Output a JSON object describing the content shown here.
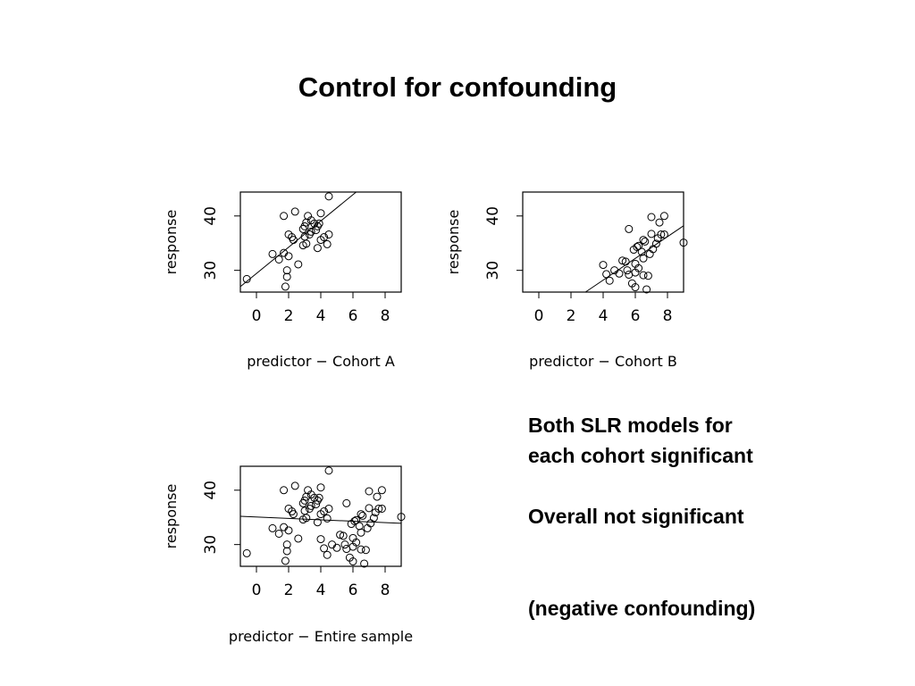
{
  "slide": {
    "title": "Control for confounding",
    "notes": {
      "line1": "Both SLR models for",
      "line2": "each cohort significant",
      "line3": "Overall not significant",
      "line4": "(negative confounding)"
    }
  },
  "chart_data": [
    {
      "type": "scatter",
      "title": "",
      "xlabel": "predictor − Cohort A",
      "ylabel": "response",
      "xlim": [
        -1,
        9
      ],
      "ylim": [
        26,
        44.4
      ],
      "xticks": [
        0,
        2,
        4,
        6,
        8
      ],
      "yticks": [
        30,
        40
      ],
      "marker": "open-circle",
      "points": [
        [
          -0.6,
          28.4
        ],
        [
          1.0,
          33.0
        ],
        [
          1.4,
          32.0
        ],
        [
          1.7,
          33.2
        ],
        [
          1.7,
          40.0
        ],
        [
          1.8,
          27.0
        ],
        [
          1.9,
          28.8
        ],
        [
          1.9,
          30.0
        ],
        [
          2.0,
          32.6
        ],
        [
          2.0,
          36.6
        ],
        [
          2.2,
          36.1
        ],
        [
          2.3,
          35.6
        ],
        [
          2.4,
          40.8
        ],
        [
          2.6,
          31.1
        ],
        [
          2.9,
          34.6
        ],
        [
          2.9,
          37.6
        ],
        [
          3.0,
          36.2
        ],
        [
          3.0,
          38.1
        ],
        [
          3.1,
          34.9
        ],
        [
          3.1,
          38.8
        ],
        [
          3.2,
          40.0
        ],
        [
          3.3,
          36.6
        ],
        [
          3.4,
          39.2
        ],
        [
          3.4,
          37.1
        ],
        [
          3.6,
          38.6
        ],
        [
          3.7,
          37.4
        ],
        [
          3.8,
          38.1
        ],
        [
          3.8,
          34.1
        ],
        [
          3.9,
          38.6
        ],
        [
          4.0,
          35.6
        ],
        [
          4.0,
          40.5
        ],
        [
          4.2,
          36.1
        ],
        [
          4.4,
          34.8
        ],
        [
          4.5,
          36.6
        ],
        [
          4.5,
          43.6
        ]
      ],
      "regression": [
        [
          -1,
          27.0
        ],
        [
          6.2,
          44.4
        ]
      ]
    },
    {
      "type": "scatter",
      "title": "",
      "xlabel": "predictor − Cohort B",
      "ylabel": "response",
      "xlim": [
        -1,
        9
      ],
      "ylim": [
        26,
        44.4
      ],
      "xticks": [
        0,
        2,
        4,
        6,
        8
      ],
      "yticks": [
        30,
        40
      ],
      "marker": "open-circle",
      "points": [
        [
          4.0,
          31.0
        ],
        [
          4.2,
          29.3
        ],
        [
          4.4,
          28.1
        ],
        [
          4.7,
          30.0
        ],
        [
          5.0,
          29.4
        ],
        [
          5.2,
          31.8
        ],
        [
          5.4,
          31.6
        ],
        [
          5.5,
          30.0
        ],
        [
          5.6,
          29.2
        ],
        [
          5.6,
          37.6
        ],
        [
          5.8,
          27.6
        ],
        [
          5.9,
          33.8
        ],
        [
          6.0,
          26.9
        ],
        [
          6.0,
          29.6
        ],
        [
          6.0,
          31.2
        ],
        [
          6.1,
          34.3
        ],
        [
          6.2,
          34.5
        ],
        [
          6.2,
          30.4
        ],
        [
          6.4,
          33.4
        ],
        [
          6.5,
          35.6
        ],
        [
          6.5,
          32.2
        ],
        [
          6.5,
          29.1
        ],
        [
          6.6,
          35.3
        ],
        [
          6.7,
          26.5
        ],
        [
          6.8,
          29.0
        ],
        [
          6.9,
          33.0
        ],
        [
          7.0,
          39.8
        ],
        [
          7.0,
          36.7
        ],
        [
          7.1,
          33.9
        ],
        [
          7.3,
          34.9
        ],
        [
          7.4,
          35.9
        ],
        [
          7.5,
          38.8
        ],
        [
          7.6,
          36.6
        ],
        [
          7.8,
          40.0
        ],
        [
          7.8,
          36.6
        ],
        [
          9.0,
          35.1
        ]
      ],
      "regression": [
        [
          2.9,
          26.0
        ],
        [
          9.0,
          38.2
        ]
      ]
    },
    {
      "type": "scatter",
      "title": "",
      "xlabel": "predictor − Entire sample",
      "ylabel": "response",
      "xlim": [
        -1,
        9
      ],
      "ylim": [
        26,
        44.4
      ],
      "xticks": [
        0,
        2,
        4,
        6,
        8
      ],
      "yticks": [
        30,
        40
      ],
      "marker": "open-circle",
      "points": [
        [
          -0.6,
          28.4
        ],
        [
          1.0,
          33.0
        ],
        [
          1.4,
          32.0
        ],
        [
          1.7,
          33.2
        ],
        [
          1.7,
          40.0
        ],
        [
          1.8,
          27.0
        ],
        [
          1.9,
          28.8
        ],
        [
          1.9,
          30.0
        ],
        [
          2.0,
          32.6
        ],
        [
          2.0,
          36.6
        ],
        [
          2.2,
          36.1
        ],
        [
          2.3,
          35.6
        ],
        [
          2.4,
          40.8
        ],
        [
          2.6,
          31.1
        ],
        [
          2.9,
          34.6
        ],
        [
          2.9,
          37.6
        ],
        [
          3.0,
          36.2
        ],
        [
          3.0,
          38.1
        ],
        [
          3.1,
          34.9
        ],
        [
          3.1,
          38.8
        ],
        [
          3.2,
          40.0
        ],
        [
          3.3,
          36.6
        ],
        [
          3.4,
          39.2
        ],
        [
          3.4,
          37.1
        ],
        [
          3.6,
          38.6
        ],
        [
          3.7,
          37.4
        ],
        [
          3.8,
          38.1
        ],
        [
          3.8,
          34.1
        ],
        [
          3.9,
          38.6
        ],
        [
          4.0,
          35.6
        ],
        [
          4.0,
          40.5
        ],
        [
          4.2,
          36.1
        ],
        [
          4.4,
          34.8
        ],
        [
          4.5,
          36.6
        ],
        [
          4.5,
          43.6
        ],
        [
          4.0,
          31.0
        ],
        [
          4.2,
          29.3
        ],
        [
          4.4,
          28.1
        ],
        [
          4.7,
          30.0
        ],
        [
          5.0,
          29.4
        ],
        [
          5.2,
          31.8
        ],
        [
          5.4,
          31.6
        ],
        [
          5.5,
          30.0
        ],
        [
          5.6,
          29.2
        ],
        [
          5.6,
          37.6
        ],
        [
          5.8,
          27.6
        ],
        [
          5.9,
          33.8
        ],
        [
          6.0,
          26.9
        ],
        [
          6.0,
          29.6
        ],
        [
          6.0,
          31.2
        ],
        [
          6.1,
          34.3
        ],
        [
          6.2,
          34.5
        ],
        [
          6.2,
          30.4
        ],
        [
          6.4,
          33.4
        ],
        [
          6.5,
          35.6
        ],
        [
          6.5,
          32.2
        ],
        [
          6.5,
          29.1
        ],
        [
          6.6,
          35.3
        ],
        [
          6.7,
          26.5
        ],
        [
          6.8,
          29.0
        ],
        [
          6.9,
          33.0
        ],
        [
          7.0,
          39.8
        ],
        [
          7.0,
          36.7
        ],
        [
          7.1,
          33.9
        ],
        [
          7.3,
          34.9
        ],
        [
          7.4,
          35.9
        ],
        [
          7.5,
          38.8
        ],
        [
          7.6,
          36.6
        ],
        [
          7.8,
          40.0
        ],
        [
          7.8,
          36.6
        ],
        [
          9.0,
          35.1
        ]
      ],
      "regression": [
        [
          -1,
          35.2
        ],
        [
          9,
          33.9
        ]
      ]
    }
  ]
}
